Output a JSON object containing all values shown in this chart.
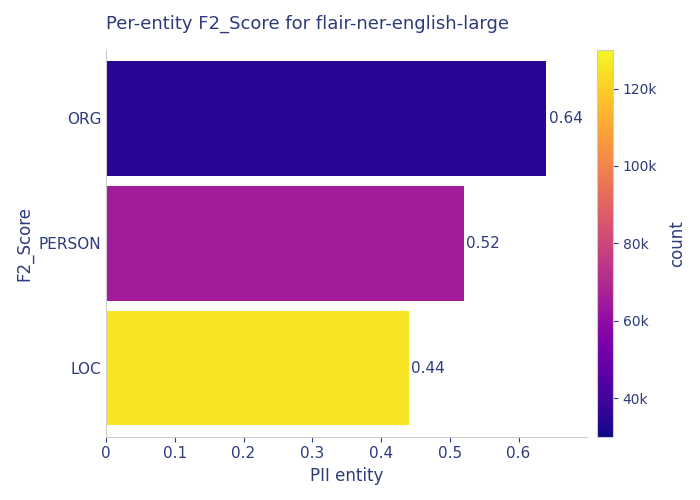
{
  "title": "Per-entity F2_Score for flair-ner-english-large",
  "categories": [
    "ORG",
    "PERSON",
    "LOC"
  ],
  "values": [
    0.64,
    0.52,
    0.44
  ],
  "xlabel": "PII entity",
  "ylabel": "F2_Score",
  "xlim": [
    0,
    0.7
  ],
  "colormap": "plasma",
  "colorbar_label": "count",
  "colorbar_ticks": [
    40000,
    60000,
    80000,
    100000,
    120000
  ],
  "colorbar_ticklabels": [
    "40k",
    "60k",
    "80k",
    "100k",
    "120k"
  ],
  "colorbar_vmin": 30000,
  "colorbar_vmax": 130000,
  "count_values": [
    35000,
    65000,
    125000
  ],
  "title_color": "#2d3b7a",
  "label_color": "#2d3b7a",
  "tick_color": "#2d3b7a",
  "annotation_color": "#2d3b7a",
  "bar_annotations": [
    "0.64",
    "0.52",
    "0.44"
  ],
  "background_color": "#ffffff",
  "bar_height": 0.92,
  "annotation_fontsize": 11,
  "label_fontsize": 12,
  "title_fontsize": 13,
  "tick_fontsize": 11
}
